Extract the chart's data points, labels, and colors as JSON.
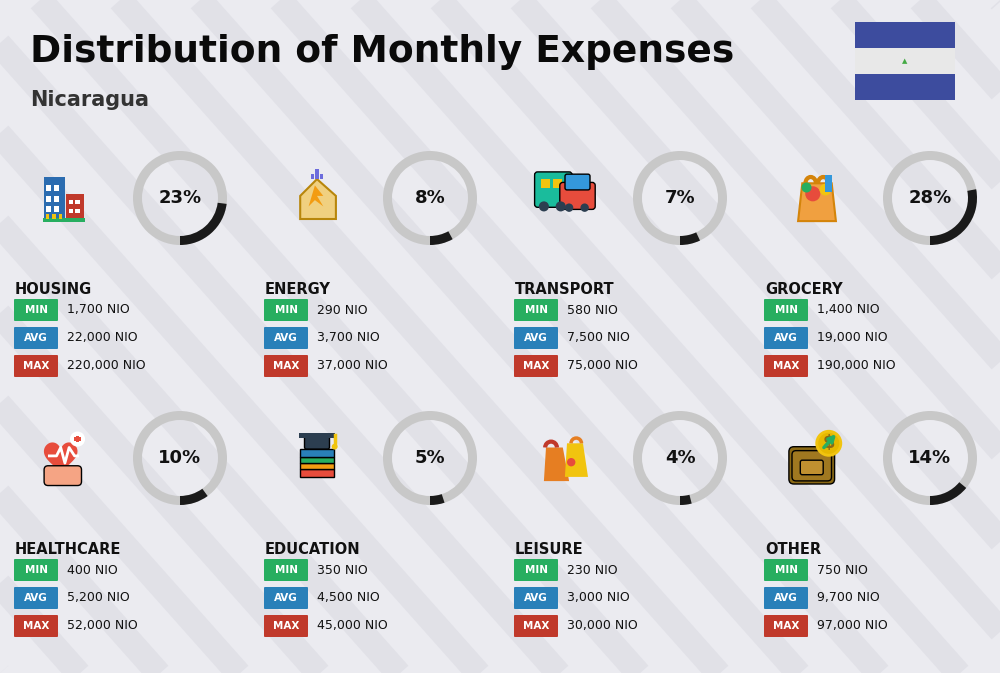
{
  "title": "Distribution of Monthly Expenses",
  "subtitle": "Nicaragua",
  "background_color": "#ebebf0",
  "categories": [
    {
      "name": "HOUSING",
      "pct": 23,
      "min_val": "1,700 NIO",
      "avg_val": "22,000 NIO",
      "max_val": "220,000 NIO",
      "row": 0,
      "col": 0
    },
    {
      "name": "ENERGY",
      "pct": 8,
      "min_val": "290 NIO",
      "avg_val": "3,700 NIO",
      "max_val": "37,000 NIO",
      "row": 0,
      "col": 1
    },
    {
      "name": "TRANSPORT",
      "pct": 7,
      "min_val": "580 NIO",
      "avg_val": "7,500 NIO",
      "max_val": "75,000 NIO",
      "row": 0,
      "col": 2
    },
    {
      "name": "GROCERY",
      "pct": 28,
      "min_val": "1,400 NIO",
      "avg_val": "19,000 NIO",
      "max_val": "190,000 NIO",
      "row": 0,
      "col": 3
    },
    {
      "name": "HEALTHCARE",
      "pct": 10,
      "min_val": "400 NIO",
      "avg_val": "5,200 NIO",
      "max_val": "52,000 NIO",
      "row": 1,
      "col": 0
    },
    {
      "name": "EDUCATION",
      "pct": 5,
      "min_val": "350 NIO",
      "avg_val": "4,500 NIO",
      "max_val": "45,000 NIO",
      "row": 1,
      "col": 1
    },
    {
      "name": "LEISURE",
      "pct": 4,
      "min_val": "230 NIO",
      "avg_val": "3,000 NIO",
      "max_val": "30,000 NIO",
      "row": 1,
      "col": 2
    },
    {
      "name": "OTHER",
      "pct": 14,
      "min_val": "750 NIO",
      "avg_val": "9,700 NIO",
      "max_val": "97,000 NIO",
      "row": 1,
      "col": 3
    }
  ],
  "min_color": "#27ae60",
  "avg_color": "#2980b9",
  "max_color": "#c0392b",
  "label_text_color": "#ffffff",
  "value_text_color": "#111111",
  "category_name_color": "#111111",
  "pct_text_color": "#111111",
  "donut_active_color": "#1a1a1a",
  "donut_inactive_color": "#c8c8c8",
  "flag_blue": "#3d4c9e",
  "shadow_color": "#d5d5de"
}
